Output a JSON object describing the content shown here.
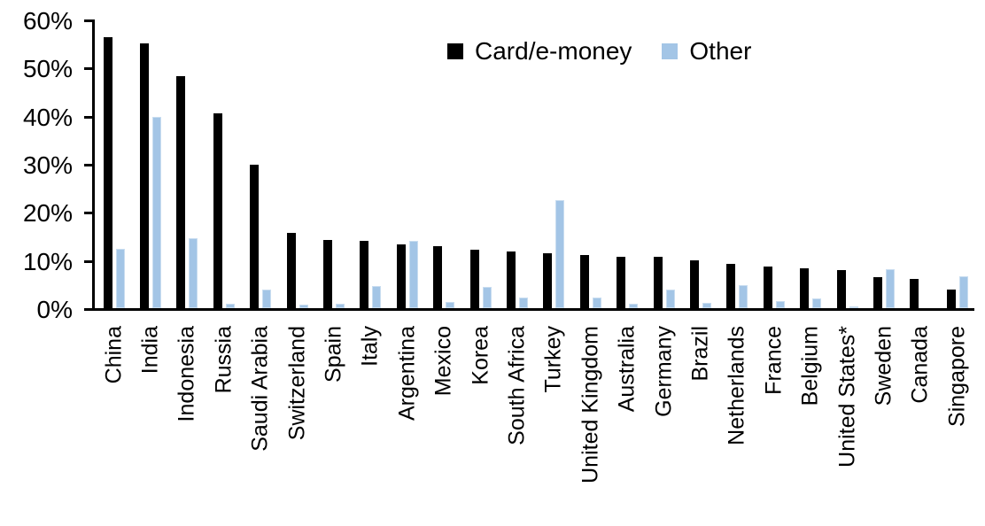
{
  "chart_data": {
    "type": "bar",
    "title": "",
    "xlabel": "",
    "ylabel": "",
    "categories": [
      "China",
      "India",
      "Indonesia",
      "Russia",
      "Saudi Arabia",
      "Switzerland",
      "Spain",
      "Italy",
      "Argentina",
      "Mexico",
      "Korea",
      "South Africa",
      "Turkey",
      "United Kingdom",
      "Australia",
      "Germany",
      "Brazil",
      "Netherlands",
      "France",
      "Belgium",
      "United States*",
      "Sweden",
      "Canada",
      "Singapore"
    ],
    "series": [
      {
        "name": "Card/e-money",
        "color": "#000000",
        "values": [
          56.3,
          55.1,
          48.3,
          40.4,
          29.8,
          15.6,
          14.2,
          14.0,
          13.2,
          12.9,
          12.2,
          11.7,
          11.5,
          11.0,
          10.7,
          10.6,
          10.0,
          9.2,
          8.7,
          8.2,
          7.9,
          6.5,
          6.0,
          3.9
        ]
      },
      {
        "name": "Other",
        "color": "#A3C5E6",
        "values": [
          12.3,
          39.7,
          14.5,
          1.0,
          3.9,
          0.8,
          1.0,
          4.6,
          14.0,
          1.3,
          4.5,
          2.3,
          22.5,
          2.3,
          1.0,
          3.9,
          1.1,
          4.8,
          1.5,
          2.0,
          0.3,
          8.1,
          0.0,
          6.6
        ]
      }
    ],
    "ylim": [
      0,
      60
    ],
    "ytick_step": 10,
    "yticks": [
      "0%",
      "10%",
      "20%",
      "30%",
      "40%",
      "50%",
      "60%"
    ],
    "grid": false,
    "legend_position": "top-center",
    "axis_color": "#000000"
  }
}
